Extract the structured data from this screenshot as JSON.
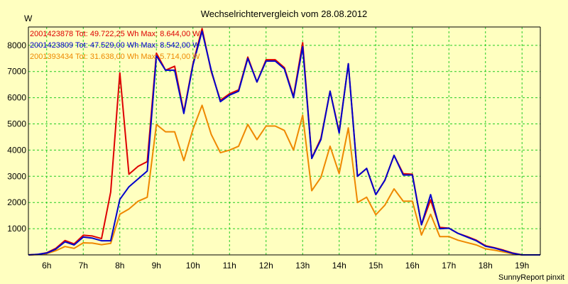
{
  "chart_data": {
    "type": "line",
    "title": "Wechselrichtervergleich vom 28.08.2012",
    "ylabel": "W",
    "xlabel": "",
    "footer": "SunnyReport pinxit",
    "xlim": [
      5.5,
      19.5
    ],
    "ylim": [
      0,
      8700
    ],
    "yticks": [
      1000,
      2000,
      3000,
      4000,
      5000,
      6000,
      7000,
      8000
    ],
    "ytick_labels": [
      "1000",
      "2000",
      "3000",
      "4000",
      "5000",
      "6000",
      "7000",
      "8000"
    ],
    "xticks": [
      6,
      7,
      8,
      9,
      10,
      11,
      12,
      13,
      14,
      15,
      16,
      17,
      18,
      19
    ],
    "xtick_labels": [
      "6h",
      "7h",
      "8h",
      "9h",
      "10h",
      "11h",
      "12h",
      "13h",
      "14h",
      "15h",
      "16h",
      "17h",
      "18h",
      "19h"
    ],
    "grid": true,
    "legend_position": "top-left",
    "x": [
      5.5,
      5.75,
      6.0,
      6.25,
      6.5,
      6.75,
      7.0,
      7.25,
      7.5,
      7.75,
      8.0,
      8.25,
      8.5,
      8.75,
      9.0,
      9.25,
      9.5,
      9.75,
      10.0,
      10.25,
      10.5,
      10.75,
      11.0,
      11.25,
      11.5,
      11.75,
      12.0,
      12.25,
      12.5,
      12.75,
      13.0,
      13.25,
      13.5,
      13.75,
      14.0,
      14.25,
      14.5,
      14.75,
      15.0,
      15.25,
      15.5,
      15.75,
      16.0,
      16.25,
      16.5,
      16.75,
      17.0,
      17.25,
      17.5,
      17.75,
      18.0,
      18.25,
      18.5,
      18.75,
      19.0,
      19.25,
      19.5
    ],
    "series": [
      {
        "name": "2001423878 Tot: 49.722,25 Wh Max: 8.644,00 W",
        "color": "#dd0000",
        "values": [
          0,
          20,
          80,
          250,
          550,
          420,
          750,
          720,
          620,
          2400,
          6950,
          3080,
          3380,
          3560,
          7700,
          7050,
          7200,
          5450,
          7300,
          8640,
          7000,
          5900,
          6150,
          6300,
          7550,
          6600,
          7450,
          7450,
          7150,
          6050,
          8100,
          3700,
          4450,
          6250,
          4700,
          7300,
          3000,
          3300,
          2300,
          2850,
          3800,
          3100,
          3080,
          1150,
          2100,
          1050,
          1020,
          820,
          700,
          560,
          350,
          270,
          180,
          70,
          0,
          0,
          0
        ]
      },
      {
        "name": "2001423809 Tot: 47.529,00 Wh Max: 8.542,00 W",
        "color": "#0000cc",
        "values": [
          0,
          20,
          70,
          220,
          500,
          380,
          680,
          640,
          540,
          540,
          2120,
          2600,
          2900,
          3200,
          7600,
          7050,
          7050,
          5400,
          7250,
          8540,
          7050,
          5850,
          6100,
          6250,
          7500,
          6600,
          7400,
          7400,
          7100,
          6000,
          7950,
          3680,
          4400,
          6250,
          4650,
          7300,
          3000,
          3300,
          2300,
          2850,
          3800,
          3050,
          3050,
          1150,
          2300,
          1000,
          1020,
          820,
          680,
          540,
          330,
          260,
          160,
          60,
          0,
          0,
          0
        ]
      },
      {
        "name": "2001393434 Tot: 31.638,00 Wh Max: 5.714,00 W",
        "color": "#ee8800",
        "values": [
          0,
          10,
          50,
          160,
          320,
          250,
          460,
          450,
          390,
          440,
          1550,
          1750,
          2050,
          2200,
          4980,
          4700,
          4700,
          3600,
          4800,
          5710,
          4600,
          3900,
          4000,
          4150,
          4980,
          4400,
          4920,
          4920,
          4750,
          4000,
          5330,
          2450,
          2960,
          4150,
          3100,
          4850,
          2000,
          2200,
          1530,
          1900,
          2520,
          2050,
          2050,
          760,
          1550,
          700,
          700,
          560,
          470,
          380,
          230,
          180,
          110,
          40,
          0,
          0,
          0
        ]
      }
    ]
  }
}
